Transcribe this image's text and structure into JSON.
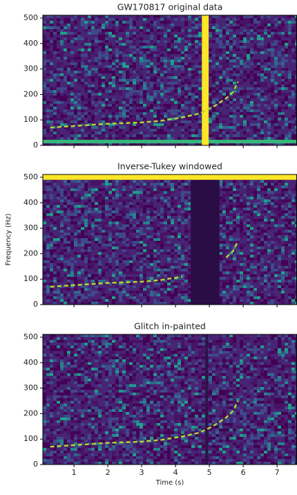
{
  "chart_data": [
    {
      "type": "spectrogram",
      "title": "GW170817 original data",
      "xlim": [
        0.08,
        7.59
      ],
      "ylim": [
        0,
        511
      ],
      "yticks": [
        0,
        100,
        200,
        300,
        400,
        500
      ],
      "series": [
        {
          "name": "chirp",
          "color": "#addc30",
          "x": [
            0.3,
            1.2,
            2.0,
            3.0,
            3.6,
            4.2,
            4.7,
            5.1,
            5.5,
            5.7,
            5.85
          ],
          "values": [
            70,
            78,
            85,
            90,
            97,
            110,
            125,
            150,
            185,
            210,
            250
          ]
        }
      ],
      "bands": [
        {
          "color": "#35b779",
          "x": [
            0.08,
            7.59
          ],
          "y": [
            8,
            22
          ]
        },
        {
          "color": "#fde725",
          "x": [
            4.78,
            4.98
          ],
          "y": [
            0,
            511
          ]
        }
      ]
    },
    {
      "type": "spectrogram",
      "title": "Inverse-Tukey windowed",
      "ylabel": "Frequency (Hz)",
      "xlim": [
        0.08,
        7.59
      ],
      "ylim": [
        0,
        511
      ],
      "yticks": [
        0,
        100,
        200,
        300,
        400,
        500
      ],
      "series": [
        {
          "name": "chirp",
          "color": "#addc30",
          "x": [
            0.3,
            1.2,
            2.0,
            3.0,
            3.6,
            4.2,
            null,
            5.5,
            5.7,
            5.85
          ],
          "values": [
            70,
            78,
            85,
            90,
            97,
            110,
            null,
            185,
            210,
            250
          ]
        }
      ],
      "bands": [
        {
          "color": "#2a0d45",
          "x": [
            4.45,
            5.3
          ],
          "y": [
            0,
            490
          ]
        },
        {
          "color": "#fde725",
          "x": [
            0.08,
            7.59
          ],
          "y": [
            490,
            511
          ]
        }
      ]
    },
    {
      "type": "spectrogram",
      "title": "Glitch in-painted",
      "xlabel": "Time (s)",
      "xlim": [
        0.08,
        7.59
      ],
      "ylim": [
        0,
        511
      ],
      "yticks": [
        0,
        100,
        200,
        300,
        400,
        500
      ],
      "xticks": [
        1,
        2,
        3,
        4,
        5,
        6,
        7
      ],
      "series": [
        {
          "name": "chirp",
          "color": "#addc30",
          "x": [
            0.3,
            1.2,
            2.0,
            3.0,
            3.6,
            4.2,
            4.7,
            5.1,
            5.5,
            5.7,
            5.85
          ],
          "values": [
            70,
            78,
            85,
            90,
            97,
            110,
            125,
            150,
            185,
            210,
            250
          ]
        }
      ],
      "bands": [
        {
          "color": "#2d1248",
          "x": [
            4.88,
            4.96
          ],
          "y": [
            0,
            511
          ]
        }
      ]
    }
  ]
}
